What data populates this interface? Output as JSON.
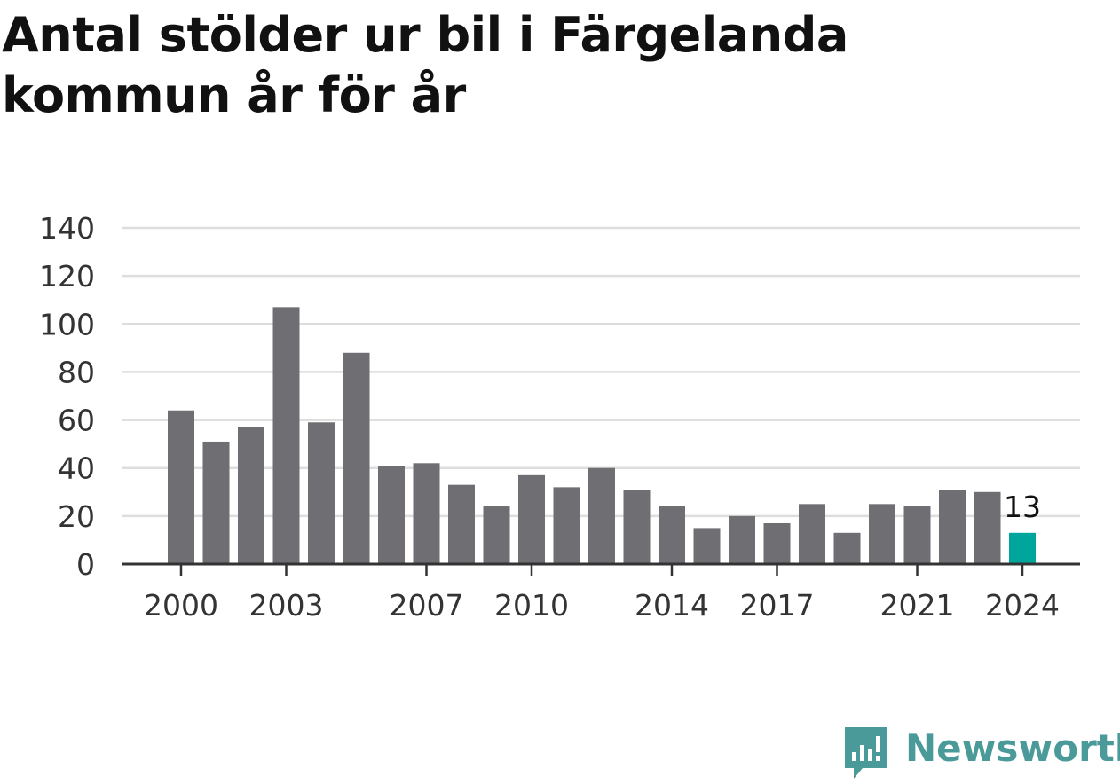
{
  "title": "Antal stölder ur bil i Färgelanda kommun år för år",
  "brand": {
    "name": "Newsworthy",
    "color": "#4a9a9a",
    "icon": "newsworthy-logo-icon"
  },
  "colors": {
    "bar": "#6e6e73",
    "highlight": "#00a59b",
    "grid": "#dddddd",
    "axis": "#333333"
  },
  "chart_data": {
    "type": "bar",
    "title": "Antal stölder ur bil i Färgelanda kommun år för år",
    "xlabel": "",
    "ylabel": "",
    "categories": [
      2000,
      2001,
      2002,
      2003,
      2004,
      2005,
      2006,
      2007,
      2008,
      2009,
      2010,
      2011,
      2012,
      2013,
      2014,
      2015,
      2016,
      2017,
      2018,
      2019,
      2020,
      2021,
      2022,
      2023,
      2024
    ],
    "values": [
      64,
      51,
      57,
      107,
      59,
      88,
      41,
      42,
      33,
      24,
      37,
      32,
      40,
      31,
      24,
      15,
      20,
      17,
      25,
      13,
      25,
      24,
      31,
      30,
      13
    ],
    "ylim": [
      0,
      140
    ],
    "yticks": [
      "0",
      "20",
      "40",
      "60",
      "80",
      "100",
      "120",
      "140"
    ],
    "xticks": [
      "2000",
      "2003",
      "2007",
      "2010",
      "2014",
      "2017",
      "2021",
      "2024"
    ],
    "highlight": {
      "category": 2024,
      "label": "13"
    },
    "grid": true,
    "legend": "none"
  }
}
